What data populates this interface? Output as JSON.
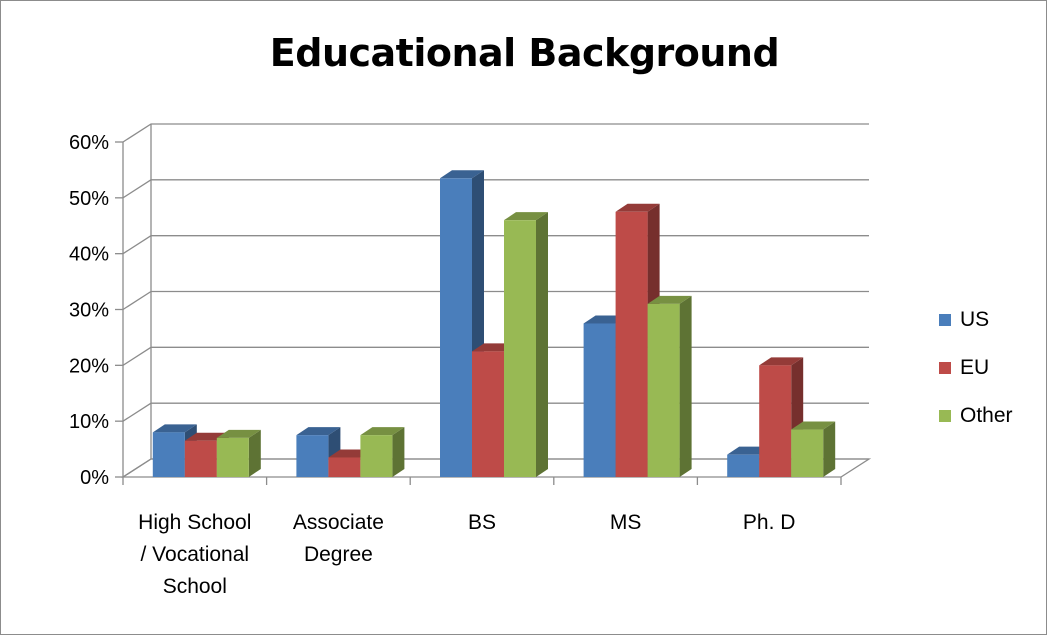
{
  "chart_data": {
    "type": "bar",
    "title": "Educational Background",
    "categories": [
      [
        "High School",
        "/ Vocational",
        "School"
      ],
      [
        "Associate",
        "Degree"
      ],
      [
        "BS"
      ],
      [
        "MS"
      ],
      [
        "Ph. D"
      ]
    ],
    "series": [
      {
        "name": "US",
        "values": [
          8,
          7.5,
          53.5,
          27.5,
          4
        ],
        "color": "#4a7ebb"
      },
      {
        "name": "EU",
        "values": [
          6.5,
          3.5,
          22.5,
          47.5,
          20
        ],
        "color": "#be4b48"
      },
      {
        "name": "Other",
        "values": [
          7,
          7.5,
          46,
          31,
          8.5
        ],
        "color": "#98b954"
      }
    ],
    "ylim": [
      0,
      60
    ],
    "yticks": [
      "0%",
      "10%",
      "20%",
      "30%",
      "40%",
      "50%",
      "60%"
    ],
    "grid": true,
    "legend": "right",
    "style": "3d-clustered-column"
  }
}
